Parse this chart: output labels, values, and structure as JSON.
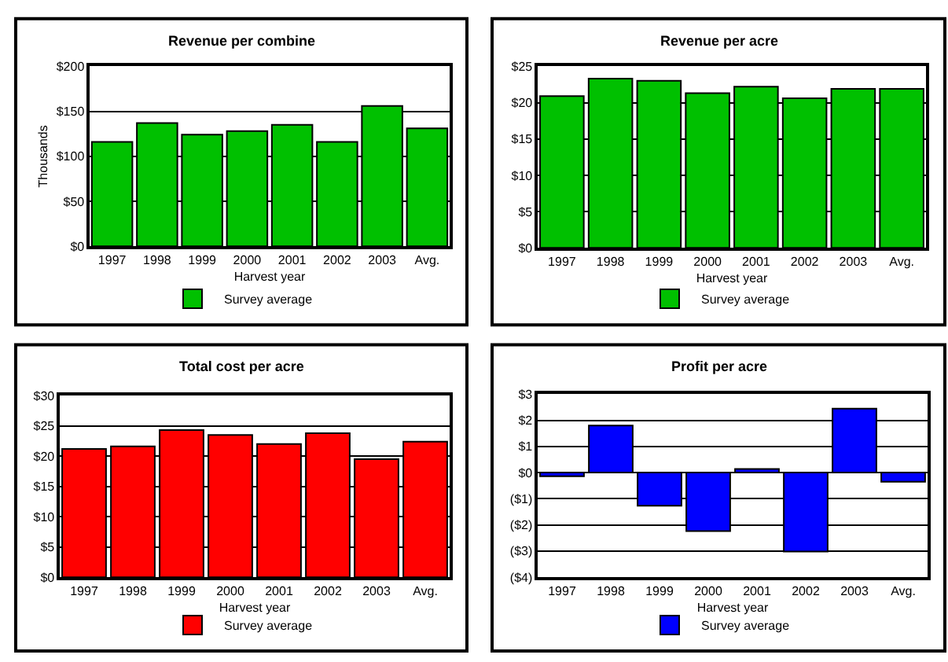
{
  "chart_data": [
    {
      "type": "bar",
      "title": "Revenue per combine",
      "xlabel": "Harvest year",
      "ylabel": "Thousands",
      "categories": [
        "1997",
        "1998",
        "1999",
        "2000",
        "2001",
        "2002",
        "2003",
        "Avg."
      ],
      "series": [
        {
          "name": "Survey average",
          "color": "#00c000",
          "values": [
            116,
            137,
            124,
            128,
            135,
            116,
            156,
            131
          ]
        }
      ],
      "ylim": [
        0,
        200
      ],
      "yticks": [
        {
          "value": 0,
          "label": "$0"
        },
        {
          "value": 50,
          "label": "$50"
        },
        {
          "value": 100,
          "label": "$100"
        },
        {
          "value": 150,
          "label": "$150"
        },
        {
          "value": 200,
          "label": "$200"
        }
      ],
      "grid": "y",
      "legend": "bottom"
    },
    {
      "type": "bar",
      "title": "Revenue per acre",
      "xlabel": "Harvest year",
      "categories": [
        "1997",
        "1998",
        "1999",
        "2000",
        "2001",
        "2002",
        "2003",
        "Avg."
      ],
      "series": [
        {
          "name": "Survey average",
          "color": "#00c000",
          "values": [
            20.9,
            23.3,
            23.0,
            21.3,
            22.2,
            20.6,
            21.9,
            21.9
          ]
        }
      ],
      "ylim": [
        0,
        25
      ],
      "yticks": [
        {
          "value": 0,
          "label": "$0"
        },
        {
          "value": 5,
          "label": "$5"
        },
        {
          "value": 10,
          "label": "$10"
        },
        {
          "value": 15,
          "label": "$15"
        },
        {
          "value": 20,
          "label": "$20"
        },
        {
          "value": 25,
          "label": "$25"
        }
      ],
      "grid": "y",
      "legend": "bottom"
    },
    {
      "type": "bar",
      "title": "Total cost per acre",
      "xlabel": "Harvest year",
      "categories": [
        "1997",
        "1998",
        "1999",
        "2000",
        "2001",
        "2002",
        "2003",
        "Avg."
      ],
      "series": [
        {
          "name": "Survey average",
          "color": "#ff0000",
          "values": [
            21.2,
            21.6,
            24.3,
            23.5,
            22.0,
            23.8,
            19.5,
            22.4
          ]
        }
      ],
      "ylim": [
        0,
        30
      ],
      "yticks": [
        {
          "value": 0,
          "label": "$0"
        },
        {
          "value": 5,
          "label": "$5"
        },
        {
          "value": 10,
          "label": "$10"
        },
        {
          "value": 15,
          "label": "$15"
        },
        {
          "value": 20,
          "label": "$20"
        },
        {
          "value": 25,
          "label": "$25"
        },
        {
          "value": 30,
          "label": "$30"
        }
      ],
      "grid": "y",
      "legend": "bottom"
    },
    {
      "type": "bar",
      "title": "Profit per acre",
      "xlabel": "Harvest year",
      "categories": [
        "1997",
        "1998",
        "1999",
        "2000",
        "2001",
        "2002",
        "2003",
        "Avg."
      ],
      "series": [
        {
          "name": "Survey average",
          "color": "#0000ff",
          "values": [
            -0.14,
            1.8,
            -1.27,
            -2.24,
            0.14,
            -3.02,
            2.44,
            -0.35
          ]
        }
      ],
      "ylim": [
        -4,
        3
      ],
      "yticks": [
        {
          "value": -4,
          "label": "($4)"
        },
        {
          "value": -3,
          "label": "($3)"
        },
        {
          "value": -2,
          "label": "($2)"
        },
        {
          "value": -1,
          "label": "($1)"
        },
        {
          "value": 0,
          "label": "$0"
        },
        {
          "value": 1,
          "label": "$1"
        },
        {
          "value": 2,
          "label": "$2"
        },
        {
          "value": 3,
          "label": "$3"
        }
      ],
      "grid": "y",
      "legend": "bottom"
    }
  ]
}
